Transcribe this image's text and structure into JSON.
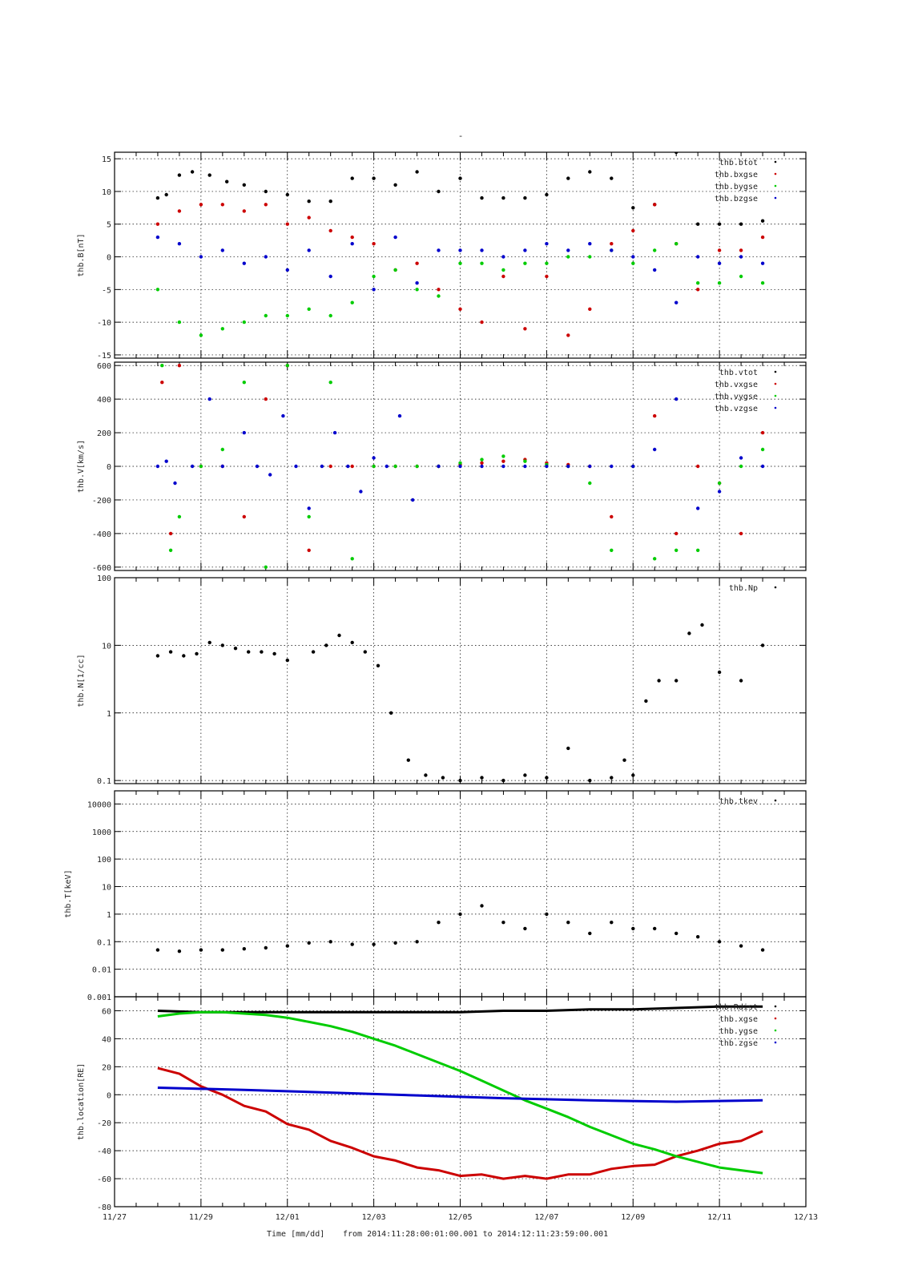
{
  "figure": {
    "top_mark": "-",
    "footer": {
      "xlabel": "Time [mm/dd]",
      "range_text": "from 2014:11:28:00:01:00.001  to  2014:12:11:23:59:00.001"
    },
    "x_ticks": [
      "11/27",
      "11/29",
      "12/01",
      "12/03",
      "12/05",
      "12/07",
      "12/09",
      "12/11",
      "12/13"
    ],
    "colors": {
      "black": "#000000",
      "red": "#cc0000",
      "green": "#00cc00",
      "blue": "#0000cc"
    }
  },
  "chart_data": [
    {
      "type": "scatter",
      "ylabel": "thb.B[nT]",
      "x_units": "days since 11/27",
      "xlim": [
        0,
        16
      ],
      "ylim": [
        -15.5,
        16
      ],
      "yticks": [
        15,
        10,
        5,
        0,
        -5,
        -10,
        -15
      ],
      "grid": true,
      "legend_position": "top-right",
      "series": [
        {
          "name": "thb.btot",
          "color": "#000000",
          "x": [
            1.0,
            1.2,
            1.5,
            1.8,
            2.2,
            2.6,
            3.0,
            3.5,
            4.0,
            4.5,
            5.0,
            5.5,
            6.0,
            6.5,
            7.0,
            7.5,
            8.0,
            8.5,
            9.0,
            9.5,
            10.0,
            10.5,
            11.0,
            11.5,
            12.0,
            12.5,
            13.0,
            13.5,
            14.0,
            14.5,
            15.0
          ],
          "y": [
            9,
            9.5,
            12.5,
            13,
            12.5,
            11.5,
            11,
            10,
            9.5,
            8.5,
            8.5,
            12,
            12,
            11,
            13,
            10,
            12,
            9,
            9,
            9,
            9.5,
            12,
            13,
            12,
            7.5,
            8,
            16,
            5,
            5,
            5,
            5.5
          ]
        },
        {
          "name": "thb.bxgse",
          "color": "#cc0000",
          "x": [
            1.0,
            1.5,
            2.0,
            2.5,
            3.0,
            3.5,
            4.0,
            4.5,
            5.0,
            5.5,
            6.0,
            6.5,
            7.0,
            7.5,
            8.0,
            8.5,
            9.0,
            9.5,
            10.0,
            10.5,
            11.0,
            11.5,
            12.0,
            12.5,
            13.0,
            13.5,
            14.0,
            14.5,
            15.0
          ],
          "y": [
            5,
            7,
            8,
            8,
            7,
            8,
            5,
            6,
            4,
            3,
            2,
            -2,
            -1,
            -5,
            -8,
            -10,
            -3,
            -11,
            -3,
            -12,
            -8,
            2,
            4,
            8,
            2,
            -5,
            1,
            1,
            3
          ]
        },
        {
          "name": "thb.bygse",
          "color": "#00cc00",
          "x": [
            1.0,
            1.5,
            2.0,
            2.5,
            3.0,
            3.5,
            4.0,
            4.5,
            5.0,
            5.5,
            6.0,
            6.5,
            7.0,
            7.5,
            8.0,
            8.5,
            9.0,
            9.5,
            10.0,
            10.5,
            11.0,
            11.5,
            12.0,
            12.5,
            13.0,
            13.5,
            14.0,
            14.5,
            15.0
          ],
          "y": [
            -5,
            -10,
            -12,
            -11,
            -10,
            -9,
            -9,
            -8,
            -9,
            -7,
            -3,
            -2,
            -5,
            -6,
            -1,
            -1,
            -2,
            -1,
            -1,
            0,
            0,
            1,
            -1,
            1,
            2,
            -4,
            -4,
            -3,
            -4
          ]
        },
        {
          "name": "thb.bzgse",
          "color": "#0000cc",
          "x": [
            1.0,
            1.5,
            2.0,
            2.5,
            3.0,
            3.5,
            4.0,
            4.5,
            5.0,
            5.5,
            6.0,
            6.5,
            7.0,
            7.5,
            8.0,
            8.5,
            9.0,
            9.5,
            10.0,
            10.5,
            11.0,
            11.5,
            12.0,
            12.5,
            13.0,
            13.5,
            14.0,
            14.5,
            15.0
          ],
          "y": [
            3,
            2,
            0,
            1,
            -1,
            0,
            -2,
            1,
            -3,
            2,
            -5,
            3,
            -4,
            1,
            1,
            1,
            0,
            1,
            2,
            1,
            2,
            1,
            0,
            -2,
            -7,
            0,
            -1,
            0,
            -1
          ]
        }
      ]
    },
    {
      "type": "scatter",
      "ylabel": "thb.V[km/s]",
      "x_units": "days since 11/27",
      "xlim": [
        0,
        16
      ],
      "ylim": [
        -620,
        620
      ],
      "yticks": [
        600,
        400,
        200,
        0,
        -200,
        -400,
        -600
      ],
      "grid": true,
      "legend_position": "top-right",
      "series": [
        {
          "name": "thb.vtot",
          "color": "#000000",
          "x": [],
          "y": []
        },
        {
          "name": "thb.vxgse",
          "color": "#cc0000",
          "x": [
            1.1,
            1.3,
            1.5,
            2.0,
            2.5,
            3.0,
            3.5,
            4.0,
            4.5,
            5.0,
            5.5,
            6.0,
            6.5,
            7.0,
            7.5,
            8.0,
            8.5,
            9.0,
            9.5,
            10.0,
            10.5,
            11.0,
            11.5,
            12.0,
            12.5,
            13.0,
            13.5,
            14.0,
            14.5,
            15.0
          ],
          "y": [
            500,
            -400,
            600,
            0,
            0,
            -300,
            400,
            600,
            -500,
            0,
            0,
            0,
            0,
            0,
            0,
            10,
            20,
            30,
            40,
            20,
            10,
            0,
            -300,
            0,
            300,
            -400,
            0,
            -100,
            -400,
            200
          ]
        },
        {
          "name": "thb.vygse",
          "color": "#00cc00",
          "x": [
            1.1,
            1.3,
            1.5,
            2.0,
            2.5,
            3.0,
            3.5,
            4.0,
            4.5,
            5.0,
            5.5,
            6.0,
            6.5,
            7.0,
            7.5,
            8.0,
            8.5,
            9.0,
            9.5,
            10.0,
            10.5,
            11.0,
            11.5,
            12.0,
            12.5,
            13.0,
            13.5,
            14.0,
            14.5,
            15.0
          ],
          "y": [
            600,
            -500,
            -300,
            0,
            100,
            500,
            -600,
            600,
            -300,
            500,
            -550,
            0,
            0,
            0,
            0,
            20,
            40,
            60,
            30,
            10,
            0,
            -100,
            -500,
            0,
            -550,
            -500,
            -500,
            -100,
            0,
            100
          ]
        },
        {
          "name": "thb.vzgse",
          "color": "#0000cc",
          "x": [
            1.0,
            1.2,
            1.4,
            1.8,
            2.2,
            2.5,
            3.0,
            3.3,
            3.6,
            3.9,
            4.2,
            4.5,
            4.8,
            5.1,
            5.4,
            5.7,
            6.0,
            6.3,
            6.6,
            6.9,
            7.5,
            8.0,
            8.5,
            9.0,
            9.5,
            10.0,
            10.5,
            11.0,
            11.5,
            12.0,
            12.5,
            13.0,
            13.5,
            14.0,
            14.5,
            15.0
          ],
          "y": [
            0,
            30,
            -100,
            0,
            400,
            0,
            200,
            0,
            -50,
            300,
            0,
            -250,
            0,
            200,
            0,
            -150,
            50,
            0,
            300,
            -200,
            0,
            0,
            0,
            0,
            0,
            0,
            0,
            0,
            0,
            0,
            100,
            400,
            -250,
            -150,
            50,
            0
          ]
        }
      ]
    },
    {
      "type": "scatter",
      "ylabel": "thb.N[1/cc]",
      "x_units": "days since 11/27",
      "xlim": [
        0,
        16
      ],
      "ylim": [
        0.09,
        100
      ],
      "yscale": "log",
      "yticks": [
        100,
        10,
        1,
        0.1
      ],
      "grid": true,
      "legend_position": "top-right",
      "series": [
        {
          "name": "thb.Np",
          "color": "#000000",
          "x": [
            1.0,
            1.3,
            1.6,
            1.9,
            2.2,
            2.5,
            2.8,
            3.1,
            3.4,
            3.7,
            4.0,
            4.6,
            4.9,
            5.2,
            5.5,
            5.8,
            6.1,
            6.4,
            6.8,
            7.2,
            7.6,
            8.0,
            8.5,
            9.0,
            9.5,
            10.0,
            10.5,
            11.0,
            11.5,
            11.8,
            12.0,
            12.3,
            12.6,
            13.0,
            13.3,
            13.6,
            14.0,
            14.5,
            15.0
          ],
          "y": [
            7,
            8,
            7,
            7.5,
            11,
            10,
            9,
            8,
            8,
            7.5,
            6,
            8,
            10,
            14,
            11,
            8,
            5,
            1,
            0.2,
            0.12,
            0.11,
            0.1,
            0.11,
            0.1,
            0.12,
            0.11,
            0.3,
            0.1,
            0.11,
            0.2,
            0.12,
            1.5,
            3,
            3,
            15,
            20,
            4,
            3,
            10
          ]
        }
      ]
    },
    {
      "type": "scatter",
      "ylabel": "thb.T[keV]",
      "x_units": "days since 11/27",
      "xlim": [
        0,
        16
      ],
      "ylim": [
        0.001,
        30000
      ],
      "yscale": "log",
      "yticks": [
        10000,
        1000,
        100,
        10,
        1,
        0.1,
        0.01,
        0.001
      ],
      "ytick_labels": [
        "10000",
        "1000",
        "100",
        "10",
        "1",
        "0.1",
        "0.01",
        "0.001"
      ],
      "grid": true,
      "legend_position": "top-right",
      "series": [
        {
          "name": "thb.tkev",
          "color": "#000000",
          "x": [
            1.0,
            1.5,
            2.0,
            2.5,
            3.0,
            3.5,
            4.0,
            4.5,
            5.0,
            5.5,
            6.0,
            6.5,
            7.0,
            7.5,
            8.0,
            8.5,
            9.0,
            9.5,
            10.0,
            10.5,
            11.0,
            11.5,
            12.0,
            12.5,
            13.0,
            13.5,
            14.0,
            14.5,
            15.0
          ],
          "y": [
            0.05,
            0.045,
            0.05,
            0.05,
            0.055,
            0.06,
            0.07,
            0.09,
            0.1,
            0.08,
            0.08,
            0.09,
            0.1,
            0.5,
            1,
            2,
            0.5,
            0.3,
            1,
            0.5,
            0.2,
            0.5,
            0.3,
            0.3,
            0.2,
            0.15,
            0.1,
            0.07,
            0.05
          ]
        }
      ]
    },
    {
      "type": "line",
      "ylabel": "thb.location[RE]",
      "x_units": "days since 11/27",
      "xlim": [
        0,
        16
      ],
      "ylim": [
        -80,
        70
      ],
      "yticks": [
        60,
        40,
        20,
        0,
        -20,
        -40,
        -60,
        -80
      ],
      "grid": true,
      "legend_position": "top-right",
      "series": [
        {
          "name": "thb.Rdist",
          "color": "#000000",
          "x": [
            1,
            2,
            3,
            4,
            5,
            6,
            7,
            8,
            9,
            10,
            11,
            12,
            13,
            14,
            15
          ],
          "y": [
            60,
            59,
            59,
            59,
            59,
            59,
            59,
            59,
            60,
            60,
            61,
            61,
            62,
            63,
            63
          ]
        },
        {
          "name": "thb.xgse",
          "color": "#cc0000",
          "x": [
            1,
            1.5,
            2,
            2.5,
            3,
            3.5,
            4,
            4.5,
            5,
            5.5,
            6,
            6.5,
            7,
            7.5,
            8,
            8.5,
            9,
            9.5,
            10,
            10.5,
            11,
            11.5,
            12,
            12.5,
            13,
            13.5,
            14,
            14.5,
            15
          ],
          "y": [
            19,
            15,
            6,
            0,
            -8,
            -12,
            -21,
            -25,
            -33,
            -38,
            -44,
            -47,
            -52,
            -54,
            -58,
            -57,
            -60,
            -58,
            -60,
            -57,
            -57,
            -53,
            -51,
            -50,
            -44,
            -40,
            -35,
            -33,
            -26
          ]
        },
        {
          "name": "thb.ygse",
          "color": "#00cc00",
          "x": [
            1,
            1.5,
            2,
            2.5,
            3,
            3.5,
            4,
            4.5,
            5,
            5.5,
            6,
            6.5,
            7,
            7.5,
            8,
            8.5,
            9,
            9.5,
            10,
            10.5,
            11,
            11.5,
            12,
            12.5,
            13,
            13.5,
            14,
            14.5,
            15
          ],
          "y": [
            56,
            58,
            59,
            59,
            58,
            57,
            55,
            52,
            49,
            45,
            40,
            35,
            29,
            23,
            17,
            10,
            3,
            -4,
            -10,
            -16,
            -23,
            -29,
            -35,
            -39,
            -44,
            -48,
            -52,
            -54,
            -56
          ]
        },
        {
          "name": "thb.zgse",
          "color": "#0000cc",
          "x": [
            1,
            3,
            5,
            7,
            9,
            11,
            13,
            15
          ],
          "y": [
            5,
            3.5,
            1.5,
            -0.5,
            -2.5,
            -4,
            -5,
            -4
          ]
        }
      ]
    }
  ]
}
